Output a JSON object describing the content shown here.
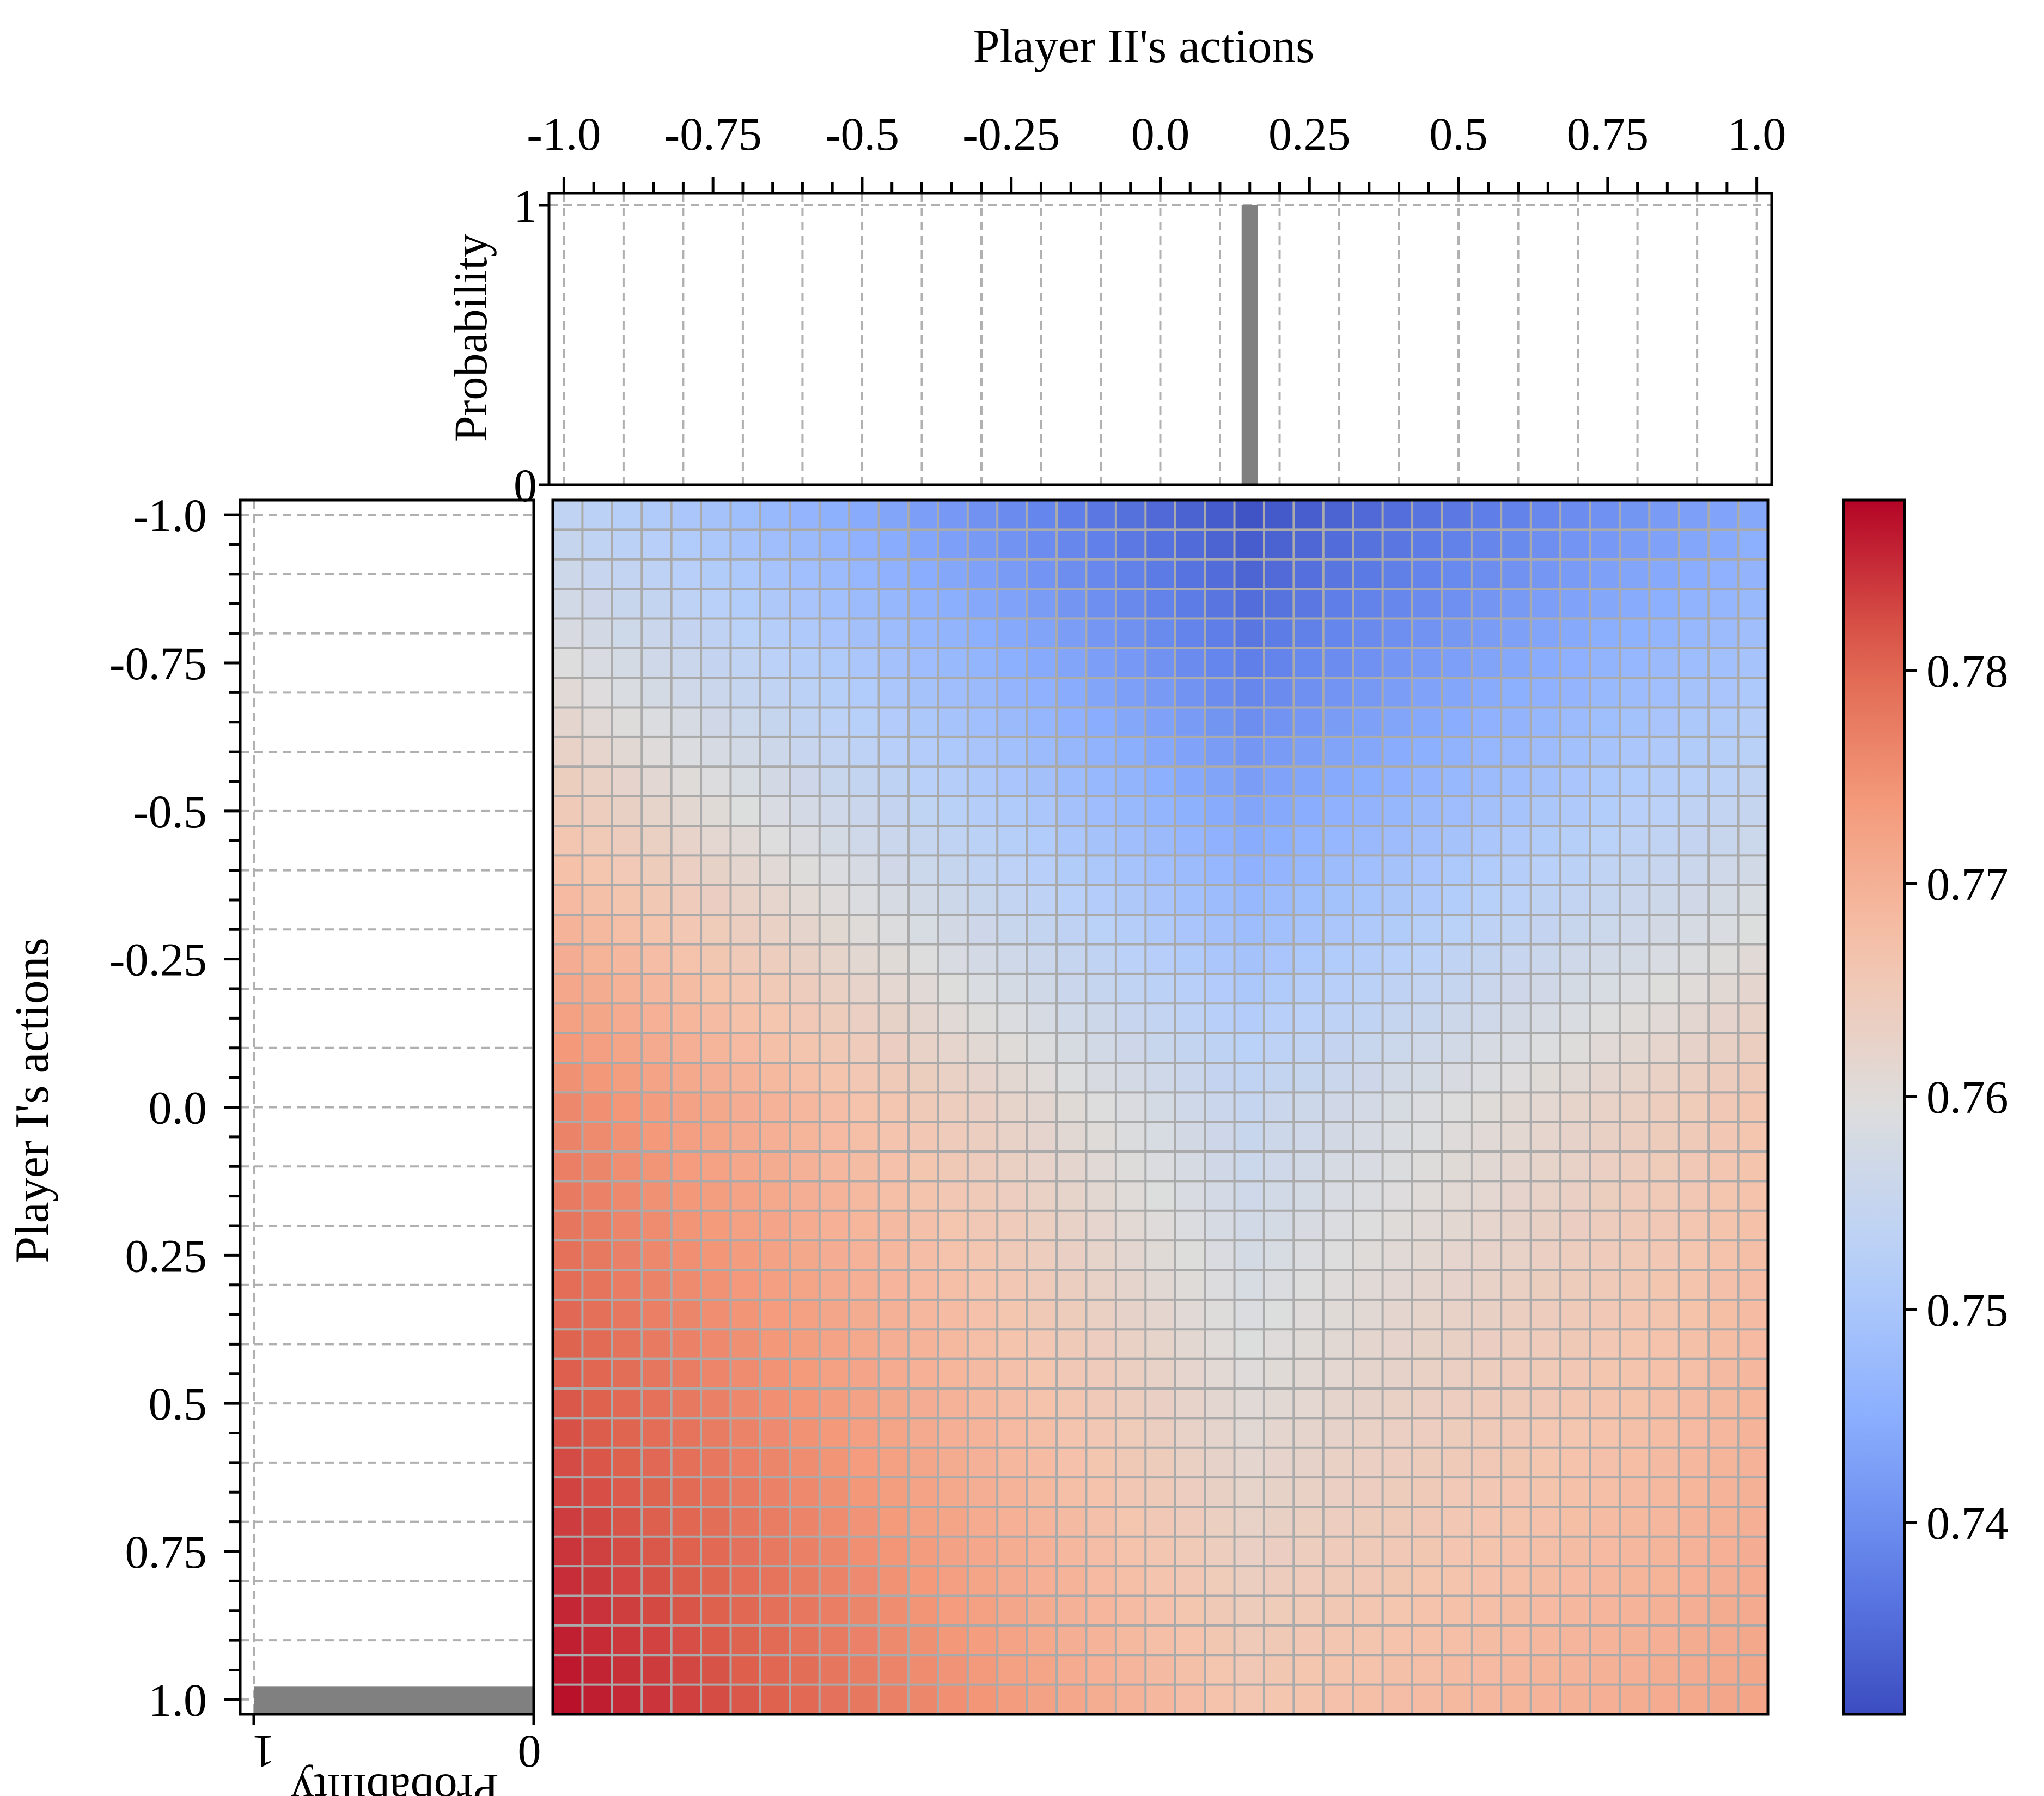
{
  "chart_data": {
    "type": "heatmap",
    "title": "",
    "xlabel": "Player II's actions",
    "ylabel": "Player I's actions",
    "xlim": [
      -1.0,
      1.0
    ],
    "ylim": [
      -1.0,
      1.0
    ],
    "grid": true,
    "grid_size": 41,
    "x_tick_labels": [
      "-1.0",
      "-0.75",
      "-0.5",
      "-0.25",
      "0.0",
      "0.25",
      "0.5",
      "0.75",
      "1.0"
    ],
    "x_tick_values": [
      -1.0,
      -0.75,
      -0.5,
      -0.25,
      0.0,
      0.25,
      0.5,
      0.75,
      1.0
    ],
    "y_tick_labels": [
      "-1.0",
      "-0.75",
      "-0.5",
      "-0.25",
      "0.0",
      "0.25",
      "0.5",
      "0.75",
      "1.0"
    ],
    "y_tick_values": [
      -1.0,
      -0.75,
      -0.5,
      -0.25,
      0.0,
      0.25,
      0.5,
      0.75,
      1.0
    ],
    "colormap": "coolwarm",
    "colorbar": {
      "min": 0.731,
      "max": 0.788,
      "tick_values": [
        0.74,
        0.75,
        0.76,
        0.77,
        0.78
      ],
      "tick_labels": [
        "0.74",
        "0.75",
        "0.76",
        "0.77",
        "0.78"
      ]
    },
    "payoff_surface": {
      "description": "Expected payoff over (Player I action y, Player II action x)",
      "corner_values": {
        "y=-1,x=-1": 0.754,
        "y=-1,x=0.15": 0.732,
        "y=-1,x=1": 0.744,
        "y=0,x=-1": 0.776,
        "y=0,x=0.15": 0.755,
        "y=0,x=1": 0.766,
        "y=1,x=-1": 0.787,
        "y=1,x=0.15": 0.766,
        "y=1,x=1": 0.772
      }
    },
    "marginals": {
      "player_ii": {
        "ylabel": "Probability",
        "tick_labels": [
          "0",
          "1"
        ],
        "ylim": [
          0,
          1
        ],
        "support_x": [
          0.15
        ],
        "probabilities": [
          1.0
        ]
      },
      "player_i": {
        "xlabel": "Probability",
        "tick_labels": [
          "1",
          "0"
        ],
        "xlim": [
          0,
          1
        ],
        "support_y": [
          1.0
        ],
        "probabilities": [
          1.0
        ]
      }
    },
    "colors": {
      "grid_line": "#aaaaaa",
      "marginal_bar": "#808080",
      "dashed_grid": "#b0b0b0"
    }
  }
}
